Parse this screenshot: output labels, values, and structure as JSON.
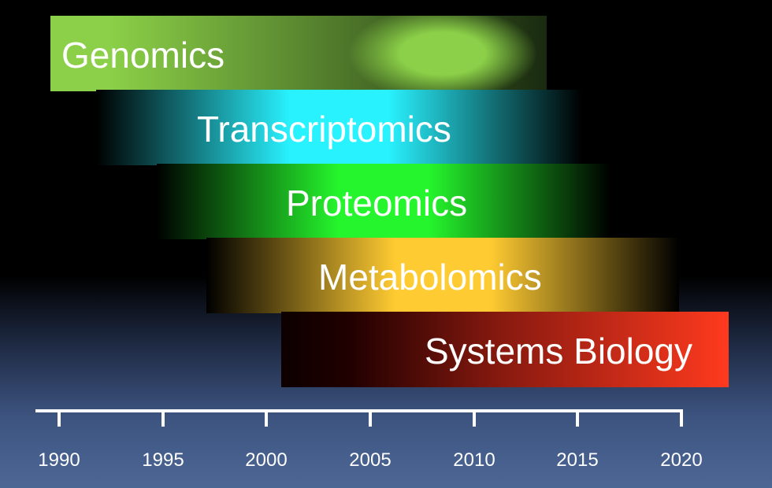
{
  "chart_data": {
    "type": "bar",
    "orientation": "horizontal",
    "title": "",
    "xlabel": "",
    "ylabel": "",
    "xlim": [
      1989,
      2021
    ],
    "x_ticks": [
      1990,
      1995,
      2000,
      2005,
      2010,
      2015,
      2020
    ],
    "grid": false,
    "series": [
      {
        "name": "Genomics",
        "start": 1989.6,
        "end": 2013.5,
        "color": "#8bd048"
      },
      {
        "name": "Transcriptomics",
        "start": 1991.8,
        "end": 2015.2,
        "color": "#29f2ff"
      },
      {
        "name": "Proteomics",
        "start": 1994.7,
        "end": 2016.6,
        "color": "#25f52c"
      },
      {
        "name": "Metabolomics",
        "start": 1997.1,
        "end": 2019.9,
        "color": "#ffcb32"
      },
      {
        "name": "Systems Biology",
        "start": 2000.7,
        "end": 2022.3,
        "color": "#ff3a1e"
      }
    ]
  }
}
